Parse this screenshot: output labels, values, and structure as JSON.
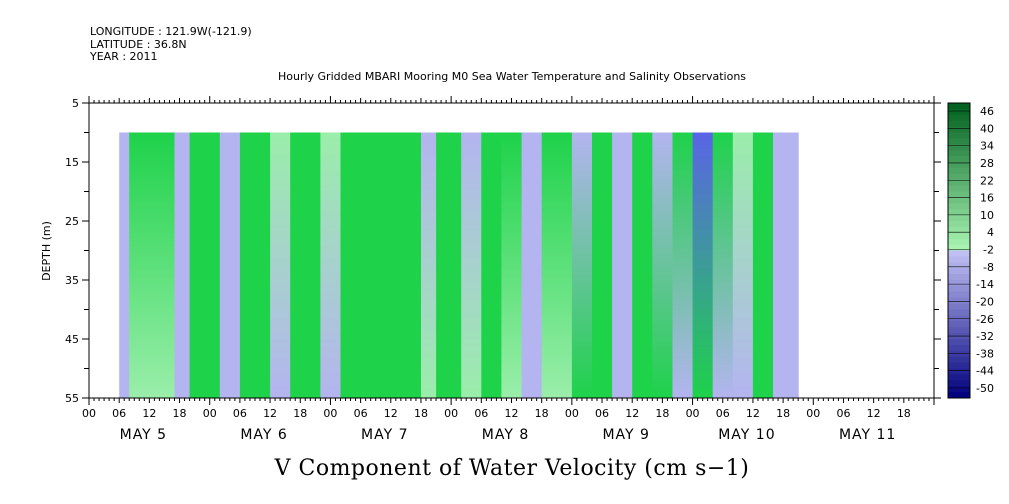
{
  "meta": {
    "longitude": "LONGITUDE : 121.9W(-121.9)",
    "latitude": "LATITUDE : 36.8N",
    "year": "YEAR : 2011"
  },
  "chart_data": {
    "type": "heatmap",
    "title": "Hourly Gridded MBARI Mooring M0 Sea Water Temperature and Salinity Observations",
    "xlabel": "V Component of Water Velocity (cm s−1)",
    "ylabel": "DEPTH (m)",
    "ylim": [
      5,
      55
    ],
    "y_inverted": true,
    "y_ticks": [
      5,
      15,
      25,
      35,
      45,
      55
    ],
    "x_range_hours": [
      0,
      168
    ],
    "x_hour_tick_labels": [
      "00",
      "06",
      "12",
      "18"
    ],
    "x_days": [
      "MAY  5",
      "MAY  6",
      "MAY  7",
      "MAY  8",
      "MAY  9",
      "MAY 10",
      "MAY 11"
    ],
    "data_extent": {
      "hour_start": 6,
      "hour_end": 141,
      "depth_top": 10,
      "depth_bottom": 55
    },
    "colorbar_labels": [
      "46",
      "40",
      "34",
      "28",
      "22",
      "16",
      "10",
      "4",
      "-2",
      "-8",
      "-14",
      "-20",
      "-26",
      "-32",
      "-38",
      "-44",
      "-50"
    ],
    "colorbar_range": [
      -50,
      50
    ],
    "colors": {
      "positive_strong": "#006a1e",
      "positive_mid": "#1ed24a",
      "positive_weak": "#9aeeaa",
      "negative_weak": "#b4b4f0",
      "negative_mid": "#5a64e6",
      "negative_strong": "#000078"
    },
    "bands": [
      {
        "h0": 6,
        "h1": 8,
        "top": -4,
        "bottom": -6
      },
      {
        "h0": 8,
        "h1": 14,
        "top": 12,
        "bottom": 8
      },
      {
        "h0": 14,
        "h1": 17,
        "top": 10,
        "bottom": 4
      },
      {
        "h0": 17,
        "h1": 20,
        "top": -4,
        "bottom": -6
      },
      {
        "h0": 20,
        "h1": 26,
        "top": 16,
        "bottom": 10
      },
      {
        "h0": 26,
        "h1": 30,
        "top": -4,
        "bottom": -2
      },
      {
        "h0": 30,
        "h1": 36,
        "top": 16,
        "bottom": 12
      },
      {
        "h0": 36,
        "h1": 40,
        "top": 8,
        "bottom": -4
      },
      {
        "h0": 40,
        "h1": 46,
        "top": 14,
        "bottom": 10
      },
      {
        "h0": 46,
        "h1": 50,
        "top": 6,
        "bottom": -4
      },
      {
        "h0": 50,
        "h1": 58,
        "top": 16,
        "bottom": 12
      },
      {
        "h0": 58,
        "h1": 62,
        "top": 22,
        "bottom": 12
      },
      {
        "h0": 62,
        "h1": 66,
        "top": 12,
        "bottom": 16
      },
      {
        "h0": 66,
        "h1": 69,
        "top": -6,
        "bottom": 6
      },
      {
        "h0": 69,
        "h1": 74,
        "top": 10,
        "bottom": 12
      },
      {
        "h0": 74,
        "h1": 78,
        "top": -10,
        "bottom": 6
      },
      {
        "h0": 78,
        "h1": 82,
        "top": 10,
        "bottom": 12
      },
      {
        "h0": 82,
        "h1": 86,
        "top": 22,
        "bottom": 8
      },
      {
        "h0": 86,
        "h1": 90,
        "top": -4,
        "bottom": -6
      },
      {
        "h0": 90,
        "h1": 96,
        "top": 10,
        "bottom": 8
      },
      {
        "h0": 96,
        "h1": 100,
        "top": -6,
        "bottom": 12
      },
      {
        "h0": 100,
        "h1": 104,
        "top": 18,
        "bottom": 10
      },
      {
        "h0": 104,
        "h1": 108,
        "top": -10,
        "bottom": -6
      },
      {
        "h0": 108,
        "h1": 112,
        "top": 20,
        "bottom": 10
      },
      {
        "h0": 112,
        "h1": 116,
        "top": -8,
        "bottom": 12
      },
      {
        "h0": 116,
        "h1": 120,
        "top": 16,
        "bottom": -6
      },
      {
        "h0": 120,
        "h1": 124,
        "top": -16,
        "bottom": 14
      },
      {
        "h0": 124,
        "h1": 128,
        "top": 18,
        "bottom": -4
      },
      {
        "h0": 128,
        "h1": 132,
        "top": 8,
        "bottom": -6
      },
      {
        "h0": 132,
        "h1": 136,
        "top": 12,
        "bottom": 10
      },
      {
        "h0": 136,
        "h1": 141,
        "top": -4,
        "bottom": -6
      }
    ]
  }
}
